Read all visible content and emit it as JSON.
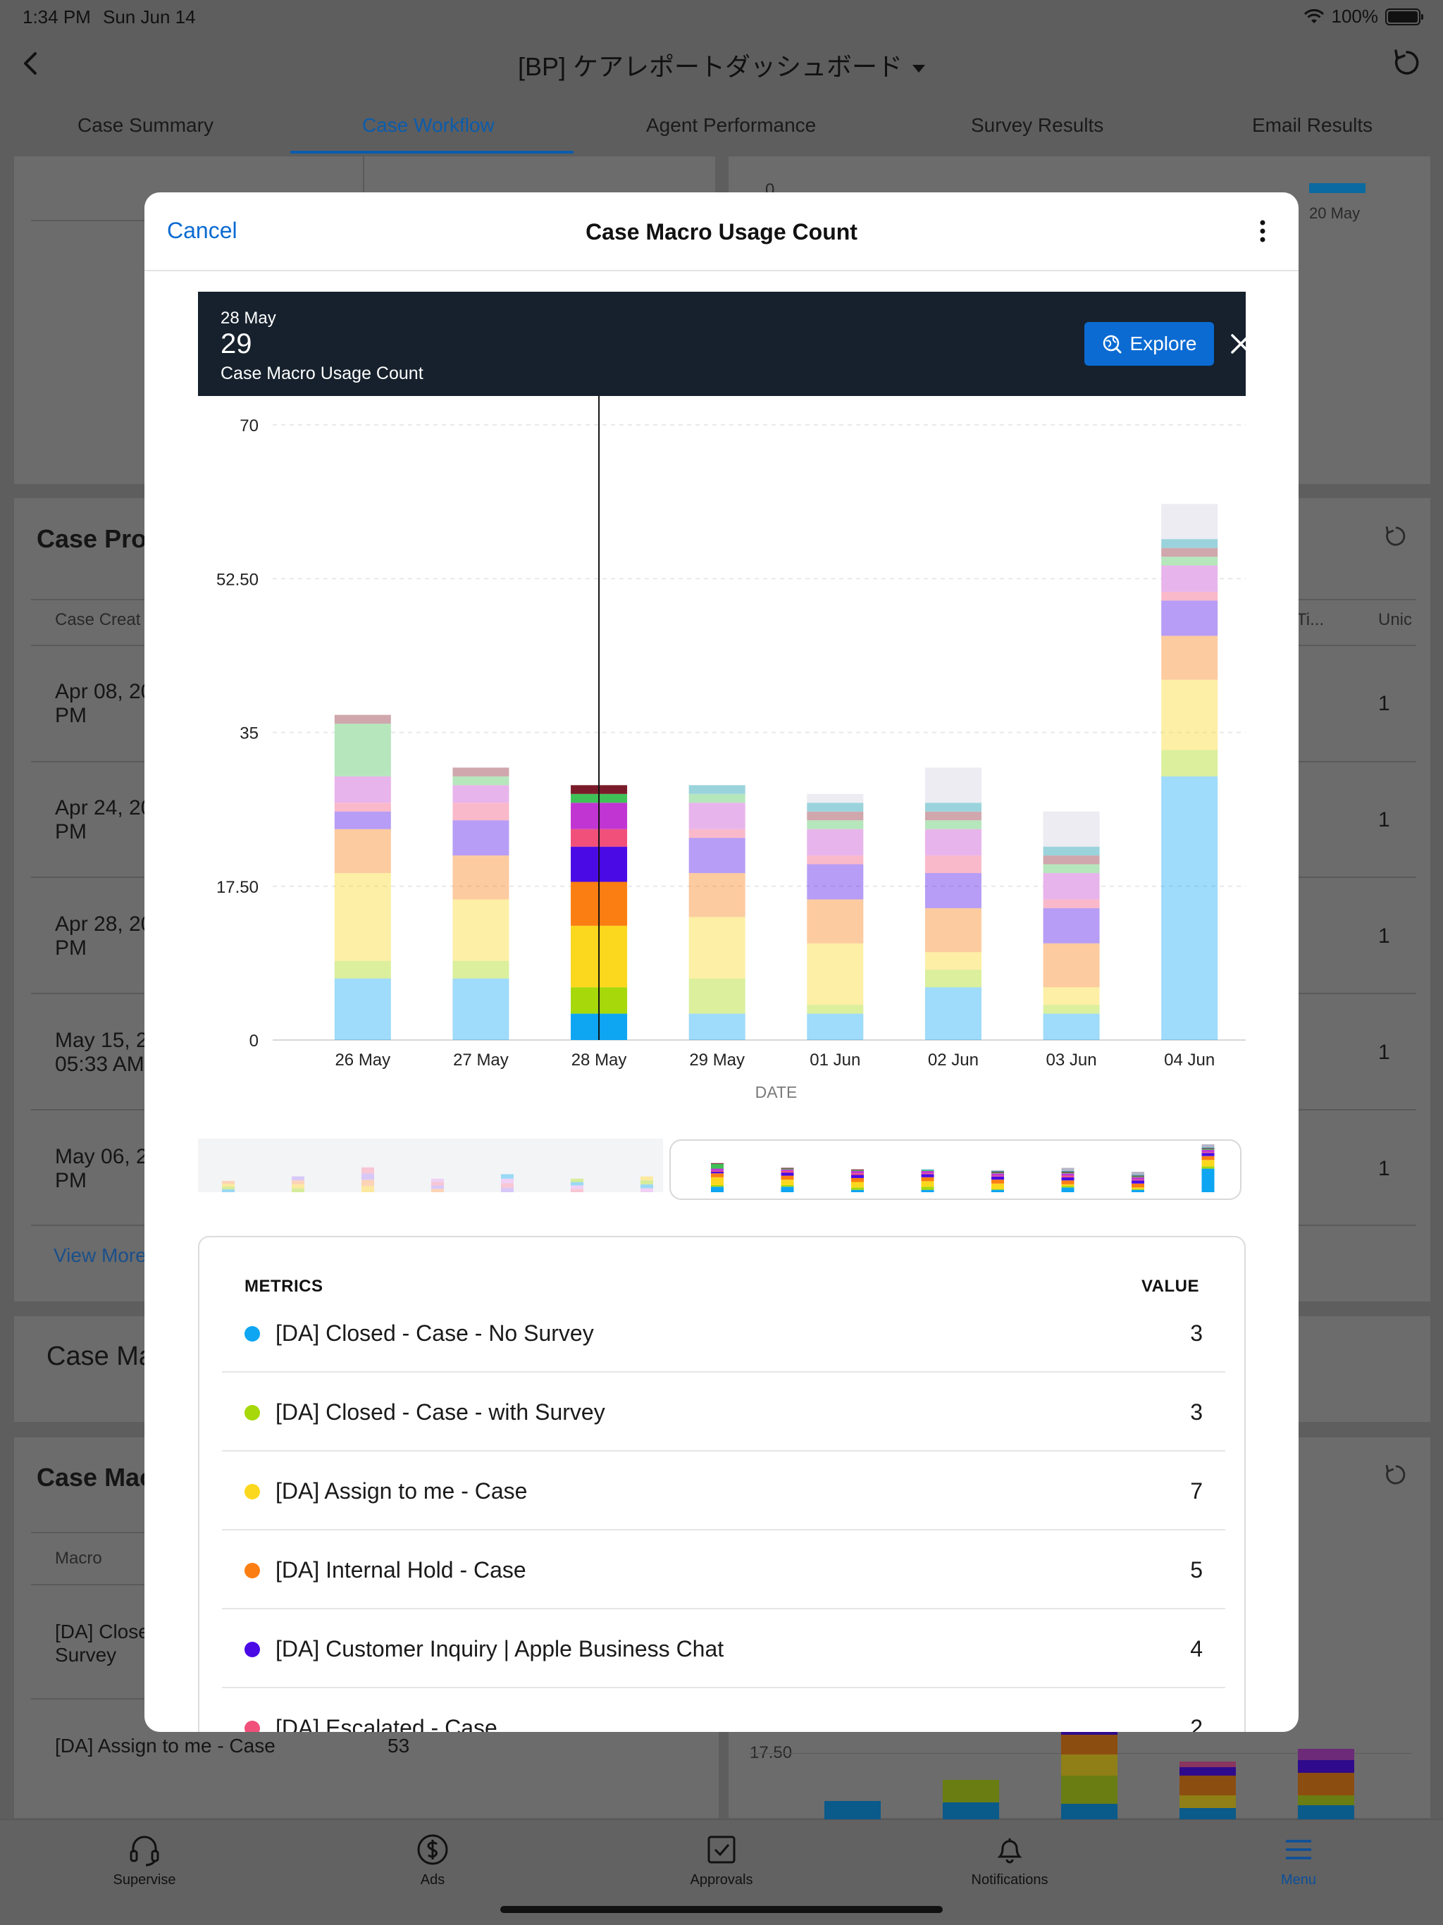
{
  "status_bar": {
    "time": "1:34 PM",
    "date": "Sun Jun 14",
    "battery": "100%"
  },
  "nav": {
    "title": "[BP] ケアレポートダッシュボード"
  },
  "tabs": [
    {
      "label": "Case Summary"
    },
    {
      "label": "Case Workflow",
      "active": true
    },
    {
      "label": "Agent Performance"
    },
    {
      "label": "Survey Results"
    },
    {
      "label": "Email Results"
    }
  ],
  "background": {
    "left_card_title": "Case Pro",
    "left_col_header": "Case Creat",
    "rows": [
      {
        "line1": "Apr 08, 20",
        "line2": "PM",
        "value": "1"
      },
      {
        "line1": "Apr 24, 20",
        "line2": "PM",
        "value": "1"
      },
      {
        "line1": "Apr 28, 20",
        "line2": "PM",
        "value": "1"
      },
      {
        "line1": "May 15, 20",
        "line2": "05:33 AM",
        "value": "1"
      },
      {
        "line1": "May 06, 2",
        "line2": "PM",
        "value": "1"
      }
    ],
    "right_col_header_a": "Ti...",
    "right_col_header_b": "Unic",
    "view_more": "View More",
    "case_ma_title": "Case Ma",
    "case_mac_title": "Case Mac",
    "macro_header": "Macro",
    "macro_row1_line1": "[DA] Close",
    "macro_row1_line2": "Survey",
    "macro_row2_name": "[DA] Assign to me - Case",
    "macro_row2_value": "53",
    "right_chart_zero": "0",
    "right_chart_date": "20 May",
    "right_chart_tick": "17.50"
  },
  "modal": {
    "cancel_label": "Cancel",
    "title": "Case Macro Usage Count",
    "tooltip": {
      "date": "28 May",
      "value": "29",
      "label": "Case Macro Usage Count",
      "explore_label": "Explore"
    },
    "metrics_header": "METRICS",
    "value_header": "VALUE",
    "metrics": [
      {
        "name": "[DA] Closed - Case - No Survey",
        "value": "3",
        "color": "#0ea5f2"
      },
      {
        "name": "[DA] Closed - Case - with Survey",
        "value": "3",
        "color": "#a6d80a"
      },
      {
        "name": "[DA] Assign to me - Case",
        "value": "7",
        "color": "#fbd81e"
      },
      {
        "name": "[DA] Internal Hold - Case",
        "value": "5",
        "color": "#fb7e12"
      },
      {
        "name": "[DA] Customer Inquiry | Apple Business Chat",
        "value": "4",
        "color": "#4a0ae6"
      },
      {
        "name": "[DA] Escalated - Case",
        "value": "2",
        "color": "#f0507a"
      }
    ]
  },
  "tabbar": [
    {
      "label": "Supervise",
      "icon": "headset-icon"
    },
    {
      "label": "Ads",
      "icon": "dollar-circle-icon"
    },
    {
      "label": "Approvals",
      "icon": "checkbox-icon"
    },
    {
      "label": "Notifications",
      "icon": "bell-icon"
    },
    {
      "label": "Menu",
      "icon": "menu-icon",
      "active": true
    }
  ],
  "chart_data": {
    "type": "bar",
    "stacked": true,
    "xlabel": "DATE",
    "ylabel": "",
    "ylim": [
      0,
      70
    ],
    "yticks": [
      "0",
      "17.50",
      "35",
      "52.50",
      "70"
    ],
    "categories": [
      "26 May",
      "27 May",
      "28 May",
      "29 May",
      "01 Jun",
      "02 Jun",
      "03 Jun",
      "04 Jun"
    ],
    "selected_category": "28 May",
    "series": [
      {
        "name": "[DA] Closed - Case - No Survey",
        "color": "#0ea5f2",
        "values": [
          7,
          7,
          3,
          3,
          3,
          6,
          3,
          30
        ]
      },
      {
        "name": "[DA] Closed - Case - with Survey",
        "color": "#a6d80a",
        "values": [
          2,
          2,
          3,
          4,
          1,
          2,
          1,
          3
        ]
      },
      {
        "name": "[DA] Assign to me - Case",
        "color": "#fbd81e",
        "values": [
          10,
          7,
          7,
          7,
          7,
          2,
          2,
          8
        ]
      },
      {
        "name": "[DA] Internal Hold - Case",
        "color": "#fb7e12",
        "values": [
          5,
          5,
          5,
          5,
          5,
          5,
          5,
          5
        ]
      },
      {
        "name": "[DA] Customer Inquiry | Apple Business Chat",
        "color": "#4a0ae6",
        "values": [
          2,
          4,
          4,
          4,
          4,
          4,
          4,
          4
        ]
      },
      {
        "name": "[DA] Escalated - Case",
        "color": "#f0507a",
        "values": [
          1,
          2,
          2,
          1,
          1,
          2,
          1,
          1
        ]
      },
      {
        "values": [
          3,
          2,
          3,
          3,
          3,
          3,
          3,
          3
        ],
        "color": "#c135d2",
        "faded": "#e8b4ec"
      },
      {
        "values": [
          6,
          1,
          1,
          1,
          1,
          1,
          1,
          1
        ],
        "color": "#40c157",
        "faded": "#b6e6bc"
      },
      {
        "values": [
          1,
          1,
          1,
          0,
          1,
          1,
          1,
          1
        ],
        "color": "#7a1b2a",
        "faded": "#cfa7ad"
      },
      {
        "values": [
          0,
          0,
          0,
          1,
          1,
          1,
          1,
          1
        ],
        "color": "#3ab0c4",
        "faded": "#9ad3dc"
      },
      {
        "values": [
          0,
          0,
          0,
          0,
          1,
          4,
          4,
          4
        ],
        "color": "#b5b5c8",
        "faded": "#ececf2"
      }
    ]
  }
}
